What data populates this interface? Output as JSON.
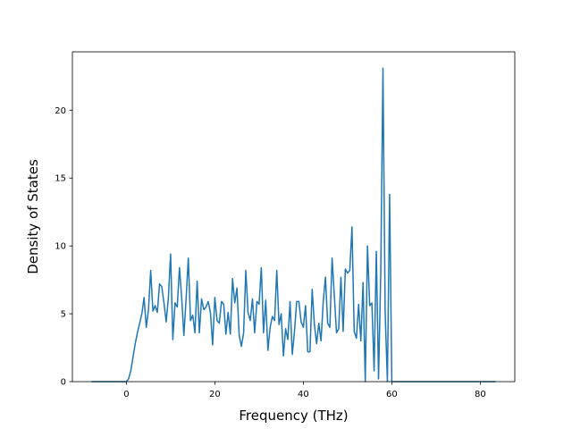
{
  "chart_data": {
    "type": "line",
    "xlabel": "Frequency (THz)",
    "ylabel": "Density of States",
    "color": "#1f77b4",
    "x": [
      -7.7,
      0,
      0.5,
      1,
      1.5,
      2,
      2.5,
      3,
      3.5,
      4,
      4.5,
      5,
      5.5,
      6,
      6.5,
      7,
      7.5,
      8,
      8.5,
      9,
      9.5,
      10,
      10.5,
      11,
      11.5,
      12,
      12.5,
      13,
      13.5,
      14,
      14.5,
      15,
      15.5,
      16,
      16.5,
      17,
      17.5,
      18,
      18.5,
      19,
      19.5,
      20,
      20.5,
      21,
      21.5,
      22,
      22.5,
      23,
      23.5,
      24,
      24.5,
      25,
      25.5,
      26,
      26.5,
      27,
      27.5,
      28,
      28.5,
      29,
      29.5,
      30,
      30.5,
      31,
      31.5,
      32,
      32.5,
      33,
      33.5,
      34,
      34.5,
      35,
      35.5,
      36,
      36.5,
      37,
      37.5,
      38,
      38.5,
      39,
      39.5,
      40,
      40.5,
      41,
      41.5,
      42,
      42.5,
      43,
      43.5,
      44,
      44.5,
      45,
      45.5,
      46,
      46.5,
      47,
      47.5,
      48,
      48.5,
      49,
      49.5,
      50,
      50.5,
      51,
      51.5,
      52,
      52.5,
      53,
      53.5,
      54,
      54.5,
      55,
      55.5,
      56,
      56.5,
      57,
      57.5,
      58,
      58.5,
      59,
      59.5,
      60,
      83.3
    ],
    "values": [
      0,
      0,
      0.2,
      0.8,
      1.8,
      2.8,
      3.6,
      4.3,
      5,
      6.2,
      4,
      5.3,
      8.2,
      5.2,
      5.6,
      5.1,
      7.2,
      7,
      5.8,
      4.4,
      6.2,
      9.4,
      3.1,
      5.8,
      5.5,
      8.4,
      6.2,
      3.4,
      6.1,
      9.1,
      4.5,
      4.9,
      3.6,
      7.4,
      3.6,
      6.1,
      5.3,
      5.5,
      5.9,
      5.1,
      2.7,
      6.2,
      4.5,
      4.3,
      5.9,
      5.7,
      3.5,
      5.1,
      3.5,
      7.6,
      5.8,
      6.9,
      3.4,
      2.6,
      3.6,
      8.2,
      5.1,
      4.5,
      6.1,
      3.6,
      5.9,
      5.7,
      8.4,
      3.6,
      6,
      2.3,
      4,
      4.8,
      4.5,
      8.2,
      4.2,
      5,
      1.9,
      3.9,
      3.1,
      5.9,
      2,
      3.7,
      5.9,
      5.9,
      4.4,
      4,
      5.6,
      2.2,
      2.2,
      6.8,
      4.2,
      2.8,
      4.3,
      3,
      5.9,
      7.7,
      4.3,
      4,
      9.1,
      6.4,
      3.6,
      3.9,
      7.7,
      3.7,
      8.3,
      8,
      8.2,
      11.4,
      3.7,
      3.2,
      5.7,
      3,
      7.3,
      0,
      10,
      5.6,
      5.8,
      0.8,
      9.6,
      0.2,
      8,
      23.1,
      5,
      0,
      13.8,
      0,
      0
    ],
    "xlim": [
      -12.2,
      87.8
    ],
    "ylim": [
      0,
      24.3
    ],
    "xticks": [
      0,
      20,
      40,
      60,
      80
    ],
    "yticks": [
      0,
      5,
      10,
      15,
      20
    ]
  }
}
